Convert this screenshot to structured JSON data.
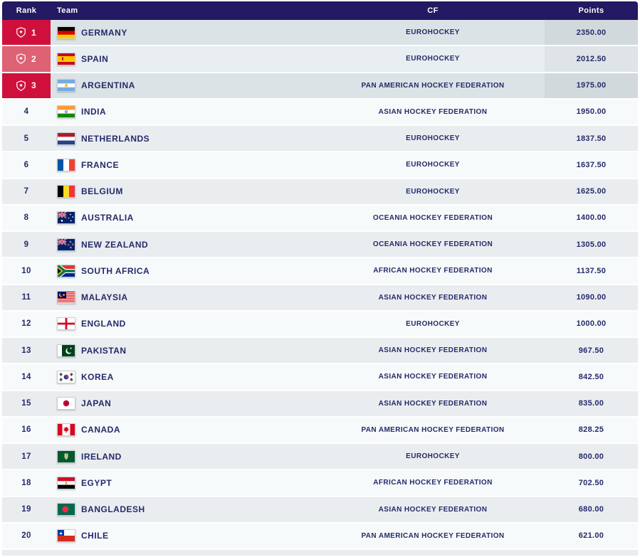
{
  "colors": {
    "header_bg": "#221a62",
    "navy_text": "#252a6a",
    "badge_red": "#d0103c",
    "badge_red_light": "#dd6274",
    "row_top3_dark": "#dbe3e6",
    "row_top3_light": "#e8eef1",
    "points_top3_dark": "#d1d9dd",
    "points_top3_light": "#dee4e8",
    "row_light": "#f6fafa",
    "row_alt": "#e9edf0"
  },
  "header": {
    "columns": [
      {
        "id": "rank",
        "label": "Rank"
      },
      {
        "id": "team",
        "label": "Team"
      },
      {
        "id": "cf",
        "label": "CF"
      },
      {
        "id": "points",
        "label": "Points"
      }
    ]
  },
  "table": {
    "rows": [
      {
        "rank": 1,
        "team": "GERMANY",
        "flag": "de",
        "cf": "EUROHOCKEY",
        "points": "2350.00"
      },
      {
        "rank": 2,
        "team": "SPAIN",
        "flag": "es",
        "cf": "EUROHOCKEY",
        "points": "2012.50"
      },
      {
        "rank": 3,
        "team": "ARGENTINA",
        "flag": "ar",
        "cf": "PAN AMERICAN HOCKEY FEDERATION",
        "points": "1975.00"
      },
      {
        "rank": 4,
        "team": "INDIA",
        "flag": "in",
        "cf": "ASIAN HOCKEY FEDERATION",
        "points": "1950.00"
      },
      {
        "rank": 5,
        "team": "NETHERLANDS",
        "flag": "nl",
        "cf": "EUROHOCKEY",
        "points": "1837.50"
      },
      {
        "rank": 6,
        "team": "FRANCE",
        "flag": "fr",
        "cf": "EUROHOCKEY",
        "points": "1637.50"
      },
      {
        "rank": 7,
        "team": "BELGIUM",
        "flag": "be",
        "cf": "EUROHOCKEY",
        "points": "1625.00"
      },
      {
        "rank": 8,
        "team": "AUSTRALIA",
        "flag": "au",
        "cf": "OCEANIA HOCKEY FEDERATION",
        "points": "1400.00"
      },
      {
        "rank": 9,
        "team": "NEW ZEALAND",
        "flag": "nz",
        "cf": "OCEANIA HOCKEY FEDERATION",
        "points": "1305.00"
      },
      {
        "rank": 10,
        "team": "SOUTH AFRICA",
        "flag": "za",
        "cf": "AFRICAN HOCKEY FEDERATION",
        "points": "1137.50"
      },
      {
        "rank": 11,
        "team": "MALAYSIA",
        "flag": "my",
        "cf": "ASIAN HOCKEY FEDERATION",
        "points": "1090.00"
      },
      {
        "rank": 12,
        "team": "ENGLAND",
        "flag": "en",
        "cf": "EUROHOCKEY",
        "points": "1000.00"
      },
      {
        "rank": 13,
        "team": "PAKISTAN",
        "flag": "pk",
        "cf": "ASIAN HOCKEY FEDERATION",
        "points": "967.50"
      },
      {
        "rank": 14,
        "team": "KOREA",
        "flag": "kr",
        "cf": "ASIAN HOCKEY FEDERATION",
        "points": "842.50"
      },
      {
        "rank": 15,
        "team": "JAPAN",
        "flag": "jp",
        "cf": "ASIAN HOCKEY FEDERATION",
        "points": "835.00"
      },
      {
        "rank": 16,
        "team": "CANADA",
        "flag": "ca",
        "cf": "PAN AMERICAN HOCKEY FEDERATION",
        "points": "828.25"
      },
      {
        "rank": 17,
        "team": "IRELAND",
        "flag": "ie",
        "cf": "EUROHOCKEY",
        "points": "800.00"
      },
      {
        "rank": 18,
        "team": "EGYPT",
        "flag": "eg",
        "cf": "AFRICAN HOCKEY FEDERATION",
        "points": "702.50"
      },
      {
        "rank": 19,
        "team": "BANGLADESH",
        "flag": "bd",
        "cf": "ASIAN HOCKEY FEDERATION",
        "points": "680.00"
      },
      {
        "rank": 20,
        "team": "CHILE",
        "flag": "cl",
        "cf": "PAN AMERICAN HOCKEY FEDERATION",
        "points": "621.00"
      }
    ]
  }
}
